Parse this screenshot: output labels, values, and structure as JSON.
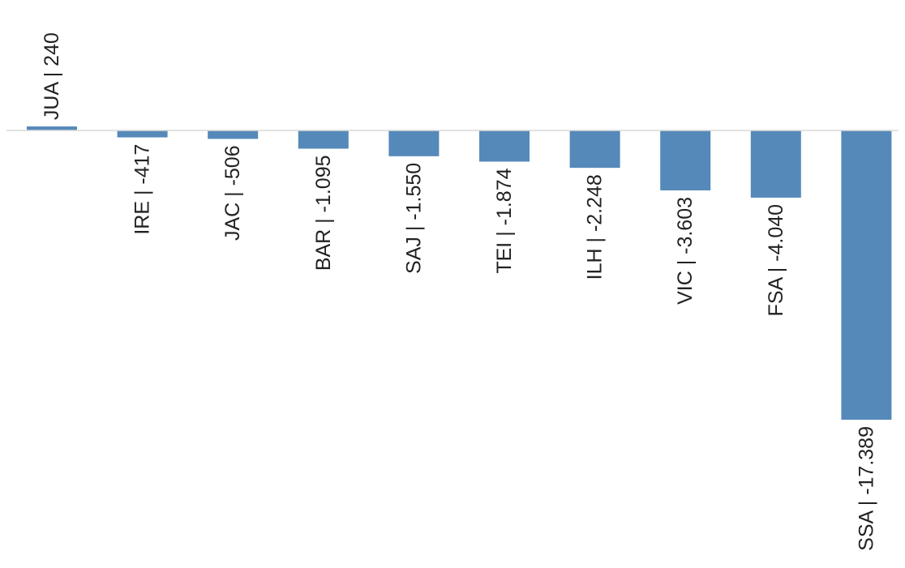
{
  "chart_data": {
    "type": "bar",
    "title": "",
    "xlabel": "",
    "ylabel": "",
    "grid": false,
    "legend": "none",
    "bar_color": "#5589b9",
    "axis_color": "#d9d9d9",
    "categories": [
      "JUA",
      "IRE",
      "JAC",
      "BAR",
      "SAJ",
      "TEI",
      "ILH",
      "VIC",
      "FSA",
      "SSA"
    ],
    "values": [
      240,
      -417,
      -506,
      -1095,
      -1550,
      -1874,
      -2248,
      -3603,
      -4040,
      -17389
    ],
    "labels": [
      "JUA | 240",
      "IRE | -417",
      "JAC | -506",
      "BAR | -1.095",
      "SAJ | -1.550",
      "TEI | -1.874",
      "ILH | -2.248",
      "VIC | -3.603",
      "FSA | -4.040",
      "SSA | -17.389"
    ]
  }
}
